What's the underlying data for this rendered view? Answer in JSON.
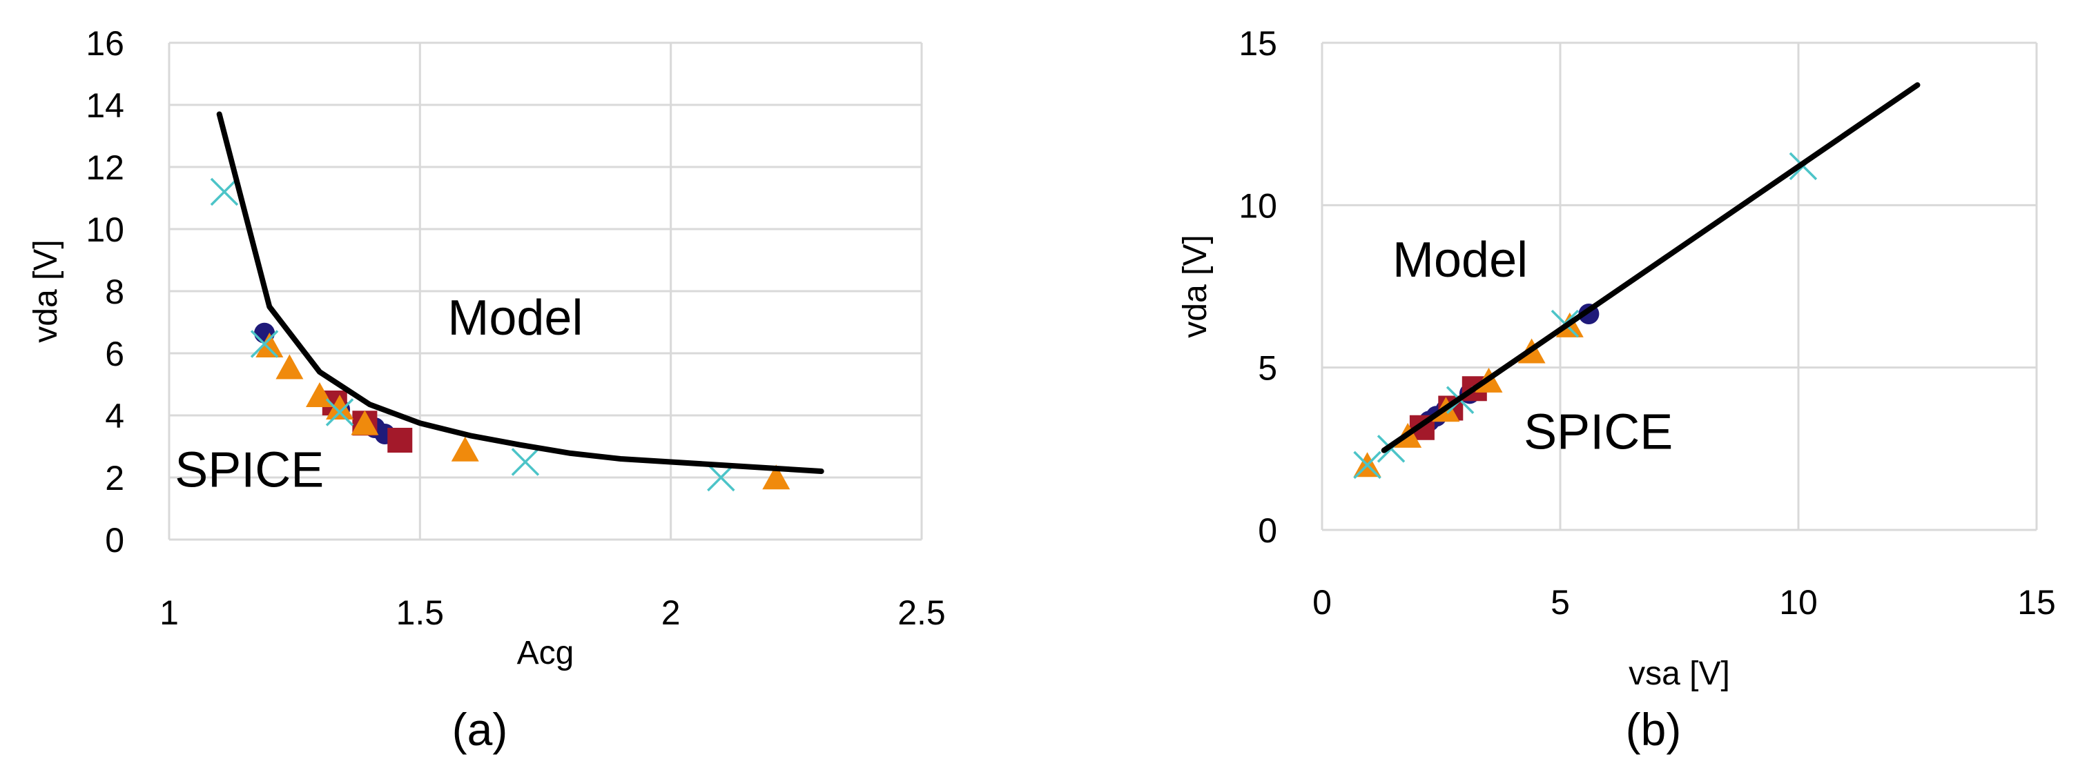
{
  "colors": {
    "model": "#000000",
    "circle": "#1f1a7a",
    "square": "#a3192a",
    "triangle": "#f08a0c",
    "cross": "#4cc4c8",
    "grid": "#d9d9d9"
  },
  "chart_data": [
    {
      "type": "scatter",
      "panel_label": "(a)",
      "xlabel": "Acg",
      "ylabel": "vda [V]",
      "xlim": [
        1,
        2.5
      ],
      "ylim": [
        0,
        16
      ],
      "xticks": [
        1,
        1.5,
        2,
        2.5
      ],
      "yticks": [
        0,
        2,
        4,
        6,
        8,
        10,
        12,
        14,
        16
      ],
      "grid": true,
      "annotations": [
        {
          "text": "Model",
          "x": 1.69,
          "y": 6.6
        },
        {
          "text": "SPICE",
          "x": 1.16,
          "y": 1.7
        }
      ],
      "model_curve": {
        "x": [
          1.1,
          1.2,
          1.3,
          1.4,
          1.5,
          1.6,
          1.7,
          1.8,
          1.9,
          2.0,
          2.1,
          2.2,
          2.3
        ],
        "y": [
          13.7,
          7.5,
          5.4,
          4.35,
          3.75,
          3.35,
          3.05,
          2.78,
          2.6,
          2.5,
          2.4,
          2.3,
          2.2
        ]
      },
      "series": [
        {
          "marker": "circle",
          "color": "#1f1a7a",
          "points": [
            [
              1.19,
              6.65
            ],
            [
              1.34,
              4.2
            ],
            [
              1.39,
              3.75
            ],
            [
              1.41,
              3.6
            ],
            [
              1.43,
              3.4
            ]
          ]
        },
        {
          "marker": "square",
          "color": "#a3192a",
          "points": [
            [
              1.33,
              4.4
            ],
            [
              1.39,
              3.75
            ],
            [
              1.46,
              3.2
            ]
          ]
        },
        {
          "marker": "triangle",
          "color": "#f08a0c",
          "points": [
            [
              1.2,
              6.2
            ],
            [
              1.24,
              5.5
            ],
            [
              1.3,
              4.6
            ],
            [
              1.34,
              4.2
            ],
            [
              1.39,
              3.7
            ],
            [
              1.59,
              2.85
            ],
            [
              2.21,
              1.95
            ]
          ]
        },
        {
          "marker": "cross",
          "color": "#4cc4c8",
          "points": [
            [
              1.11,
              11.2
            ],
            [
              1.19,
              6.3
            ],
            [
              1.34,
              4.1
            ],
            [
              1.71,
              2.5
            ],
            [
              2.1,
              2.0
            ]
          ]
        }
      ]
    },
    {
      "type": "scatter",
      "panel_label": "(b)",
      "xlabel": "vsa [V]",
      "ylabel": "vda [V]",
      "xlim": [
        0,
        15
      ],
      "ylim": [
        0,
        15
      ],
      "xticks": [
        0,
        5,
        10,
        15
      ],
      "yticks": [
        0,
        5,
        10,
        15
      ],
      "grid": true,
      "annotations": [
        {
          "text": "Model",
          "x": 2.9,
          "y": 7.8
        },
        {
          "text": "SPICE",
          "x": 5.8,
          "y": 2.5
        }
      ],
      "model_curve": {
        "x": [
          1.3,
          12.5
        ],
        "y": [
          2.45,
          13.7
        ]
      },
      "series": [
        {
          "marker": "circle",
          "color": "#1f1a7a",
          "points": [
            [
              5.6,
              6.65
            ],
            [
              3.1,
              4.2
            ],
            [
              2.6,
              3.7
            ],
            [
              2.4,
              3.5
            ],
            [
              2.25,
              3.35
            ]
          ]
        },
        {
          "marker": "square",
          "color": "#a3192a",
          "points": [
            [
              3.2,
              4.35
            ],
            [
              2.7,
              3.75
            ],
            [
              2.1,
              3.15
            ]
          ]
        },
        {
          "marker": "triangle",
          "color": "#f08a0c",
          "points": [
            [
              0.95,
              1.95
            ],
            [
              1.8,
              2.85
            ],
            [
              2.6,
              3.65
            ],
            [
              3.5,
              4.55
            ],
            [
              4.4,
              5.45
            ],
            [
              5.2,
              6.25
            ]
          ]
        },
        {
          "marker": "cross",
          "color": "#4cc4c8",
          "points": [
            [
              10.1,
              11.2
            ],
            [
              5.1,
              6.35
            ],
            [
              2.9,
              4.0
            ],
            [
              1.45,
              2.5
            ],
            [
              0.95,
              2.0
            ]
          ]
        }
      ]
    }
  ]
}
